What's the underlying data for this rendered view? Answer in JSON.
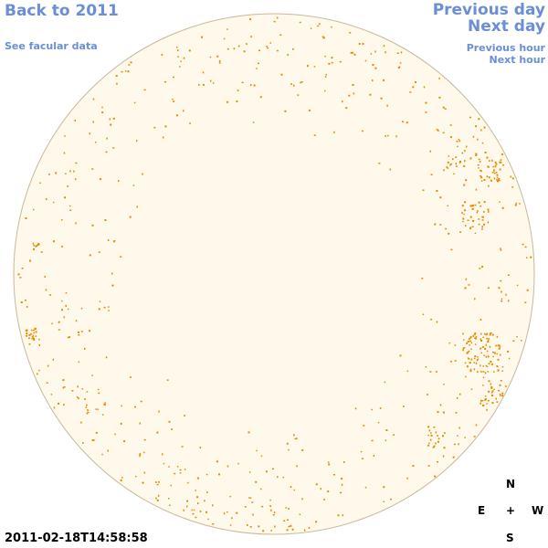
{
  "nav": {
    "back_year": "Back to 2011",
    "facular": "See facular data",
    "previous_day": "Previous day",
    "next_day": "Next day",
    "previous_hour": "Previous hour",
    "next_hour": "Next hour"
  },
  "timestamp": "2011-02-18T14:58:58",
  "compass": {
    "north": "N",
    "south": "S",
    "east": "E",
    "west": "W",
    "center": "+"
  },
  "colors": {
    "link": "#6a8fd6",
    "disk_fill": "#fff9ec",
    "disk_edge": "#c8b89a",
    "facula": "#e88a00"
  }
}
